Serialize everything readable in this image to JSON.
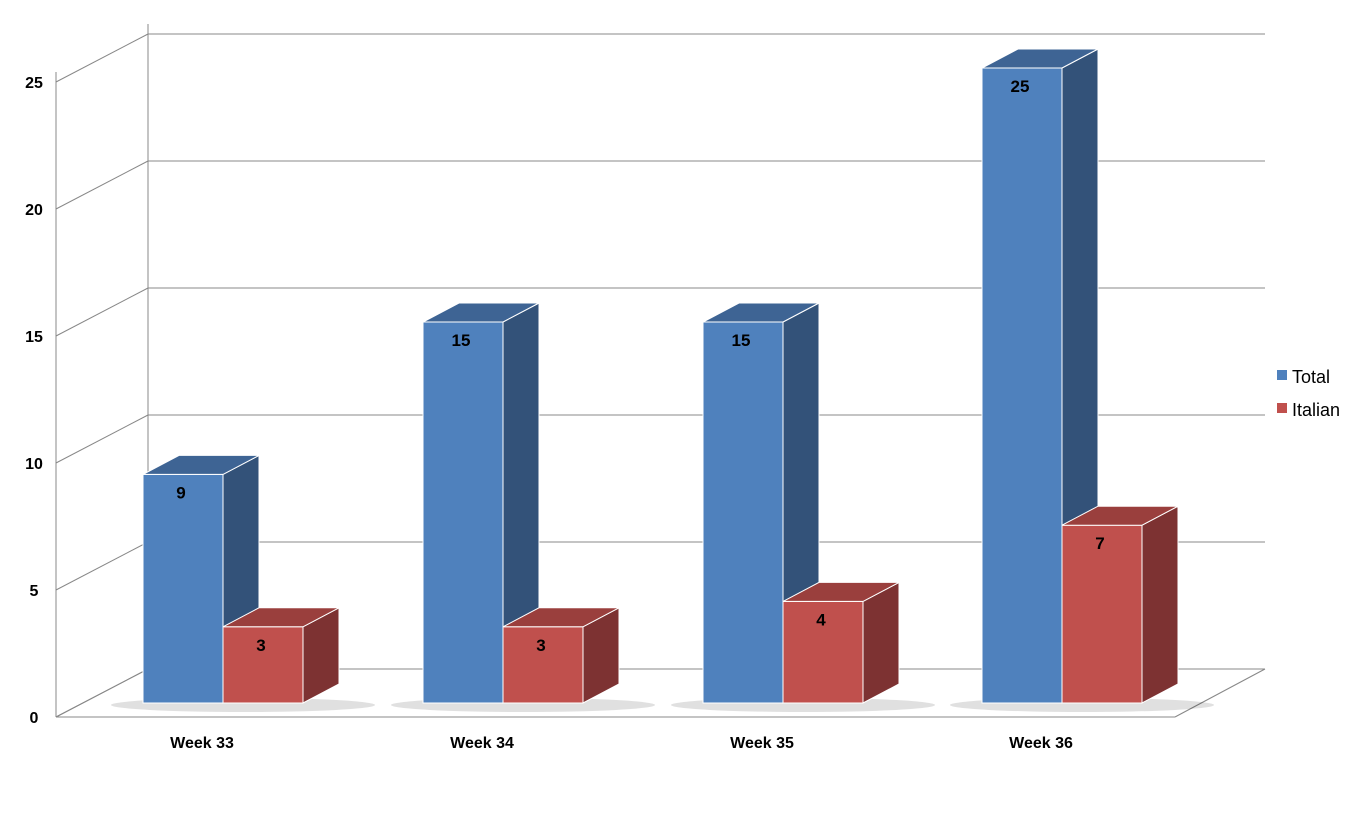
{
  "chart_data": {
    "type": "bar",
    "categories": [
      "Week 33",
      "Week 34",
      "Week 35",
      "Week 36"
    ],
    "series": [
      {
        "name": "Total",
        "values": [
          9,
          15,
          15,
          25
        ],
        "color": "#4F81BD",
        "side_color": "#335279",
        "top_color": "#3E6494"
      },
      {
        "name": "Italian",
        "values": [
          3,
          3,
          4,
          7
        ],
        "color": "#C0504D",
        "side_color": "#7D3232",
        "top_color": "#9A3F3D"
      }
    ],
    "y_ticks": [
      "0",
      "5",
      "10",
      "15",
      "20",
      "25"
    ],
    "ylim": [
      0,
      25
    ],
    "legend_position": "right",
    "grid": true,
    "three_d": true
  }
}
